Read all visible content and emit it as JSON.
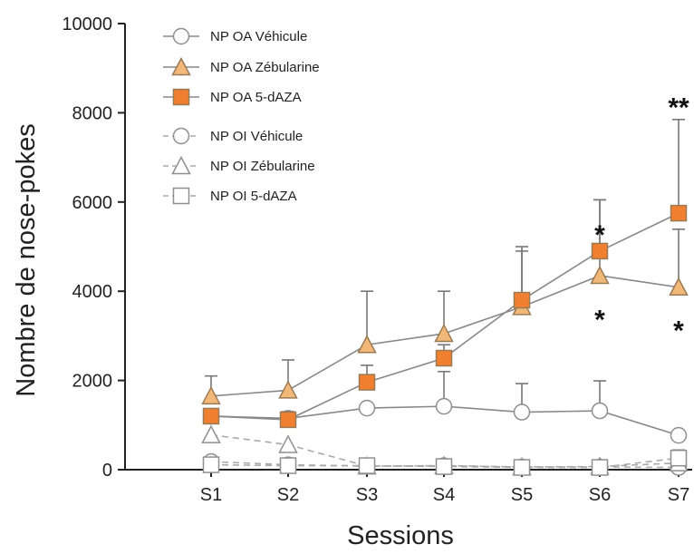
{
  "chart_data": {
    "type": "line",
    "xlabel": "Sessions",
    "ylabel": "Nombre de nose-pokes",
    "ylim": [
      0,
      10000
    ],
    "yticks": [
      "0",
      "2000",
      "4000",
      "6000",
      "8000",
      "10000"
    ],
    "categories": [
      "S1",
      "S2",
      "S3",
      "S4",
      "S5",
      "S6",
      "S7"
    ],
    "legend_position": "top-left",
    "series": [
      {
        "name": "NP OA Véhicule",
        "marker": "circle",
        "filled": false,
        "dashed": false,
        "color": "#888888",
        "values": [
          1200,
          1150,
          1380,
          1420,
          1290,
          1320,
          770
        ],
        "errors": [
          null,
          null,
          null,
          780,
          640,
          670,
          null
        ]
      },
      {
        "name": "NP OA Zébularine",
        "marker": "triangle",
        "filled": true,
        "fill": "#f2b877",
        "dashed": false,
        "color": "#888888",
        "values": [
          1650,
          1780,
          2800,
          3050,
          3650,
          4350,
          4090
        ],
        "errors": [
          450,
          680,
          1200,
          950,
          1250,
          1700,
          1300
        ]
      },
      {
        "name": "NP OA 5-dAZA",
        "marker": "square",
        "filled": true,
        "fill": "#f08030",
        "dashed": false,
        "color": "#888888",
        "values": [
          1200,
          1120,
          1960,
          2500,
          3800,
          4900,
          5750
        ],
        "errors": [
          150,
          180,
          380,
          300,
          1200,
          1150,
          2100
        ]
      },
      {
        "name": "NP OI Véhicule",
        "marker": "circle",
        "filled": false,
        "dashed": true,
        "color": "#aaaaaa",
        "values": [
          180,
          110,
          80,
          90,
          60,
          60,
          50
        ],
        "errors": [
          null,
          null,
          null,
          null,
          null,
          null,
          null
        ]
      },
      {
        "name": "NP OI Zébularine",
        "marker": "triangle",
        "filled": false,
        "dashed": true,
        "color": "#aaaaaa",
        "values": [
          780,
          560,
          80,
          90,
          60,
          70,
          150
        ],
        "errors": [
          null,
          null,
          null,
          null,
          null,
          null,
          null
        ]
      },
      {
        "name": "NP OI 5-dAZA",
        "marker": "square",
        "filled": false,
        "dashed": true,
        "color": "#aaaaaa",
        "values": [
          110,
          90,
          90,
          70,
          50,
          50,
          260
        ],
        "errors": [
          null,
          null,
          null,
          null,
          null,
          null,
          180
        ]
      }
    ],
    "annotations": [
      {
        "text": "*",
        "x": "S6",
        "y": 5350
      },
      {
        "text": "*",
        "x": "S6",
        "y": 3450
      },
      {
        "text": "**",
        "x": "S7",
        "y": 8200
      },
      {
        "text": "*",
        "x": "S7",
        "y": 3200
      }
    ]
  }
}
